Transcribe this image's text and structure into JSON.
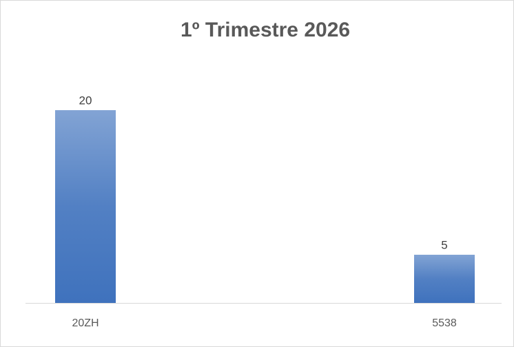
{
  "chart_data": {
    "type": "bar",
    "title": "1º Trimestre 2026",
    "categories": [
      "20ZH",
      "5538"
    ],
    "values": [
      20,
      5
    ],
    "color": "#3f72bd",
    "ylim": [
      0,
      25
    ]
  }
}
